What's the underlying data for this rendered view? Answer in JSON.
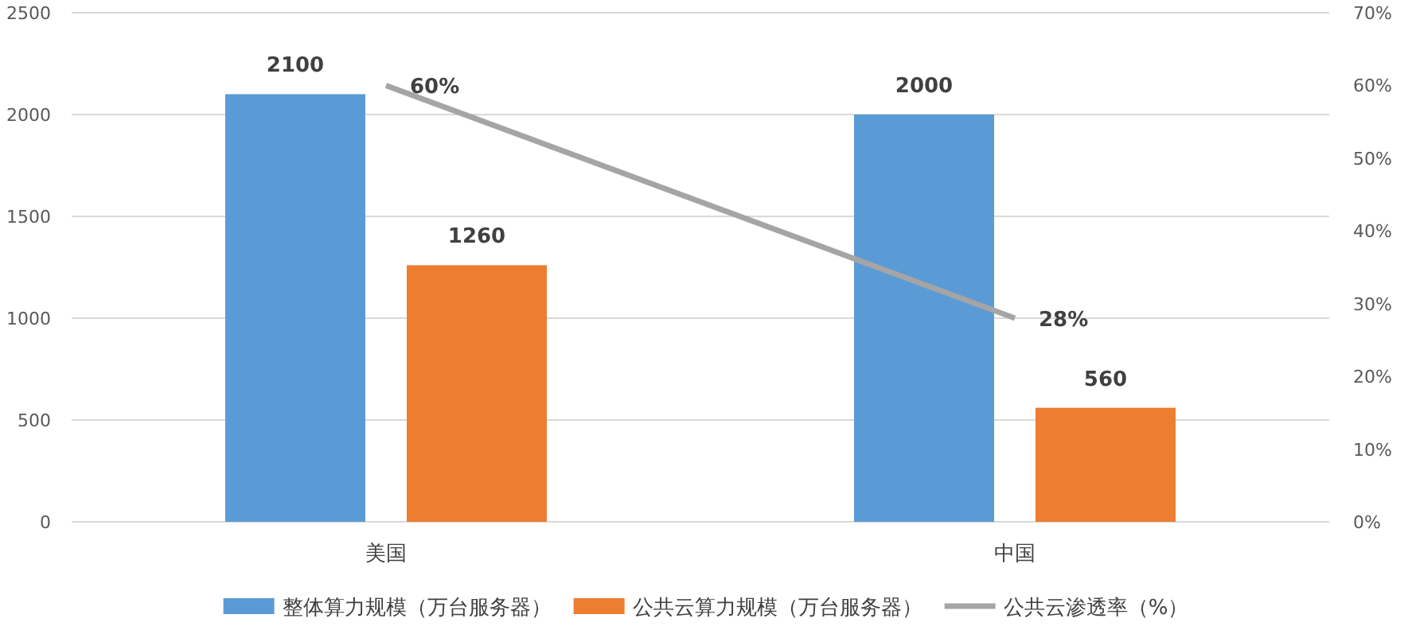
{
  "chart_data": {
    "type": "bar",
    "categories": [
      "美国",
      "中国"
    ],
    "series": [
      {
        "name": "整体算力规模（万台服务器）",
        "color": "#5b9bd5",
        "values": [
          2100,
          2000
        ],
        "value_labels": [
          "2100",
          "2000"
        ]
      },
      {
        "name": "公共云算力规模（万台服务器）",
        "color": "#ed7d31",
        "values": [
          1260,
          560
        ],
        "value_labels": [
          "1260",
          "560"
        ]
      },
      {
        "name": "公共云渗透率（%）",
        "type": "line",
        "axis": "y2",
        "color": "#a5a5a5",
        "values": [
          60,
          28
        ],
        "value_labels": [
          "60%",
          "28%"
        ]
      }
    ],
    "ylim": [
      0,
      2500
    ],
    "yticks": [
      0,
      500,
      1000,
      1500,
      2000,
      2500
    ],
    "y2lim": [
      0,
      70
    ],
    "y2ticks": [
      {
        "value": 0,
        "label": "0%"
      },
      {
        "value": 10,
        "label": "10%"
      },
      {
        "value": 20,
        "label": "20%"
      },
      {
        "value": 30,
        "label": "30%"
      },
      {
        "value": 40,
        "label": "40%"
      },
      {
        "value": 50,
        "label": "50%"
      },
      {
        "value": 60,
        "label": "60%"
      },
      {
        "value": 70,
        "label": "70%"
      }
    ],
    "grid": "y",
    "legend": "bottom"
  }
}
